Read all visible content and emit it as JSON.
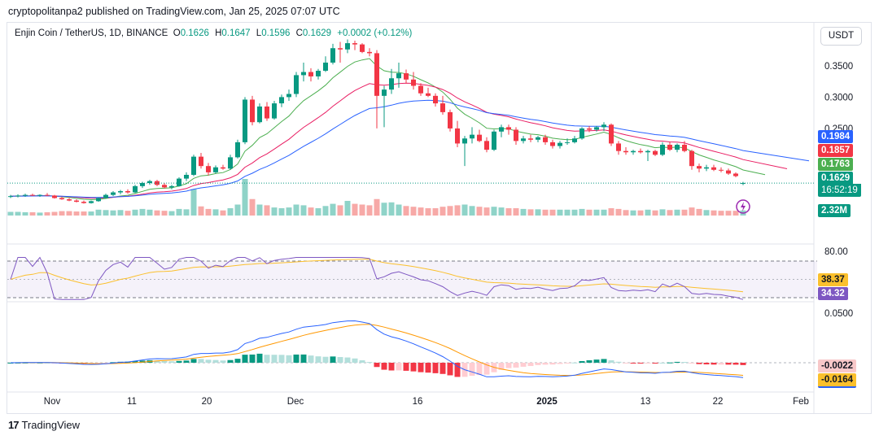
{
  "header": {
    "published": "cryptopolitanpa2 published on TradingView.com, Jan 25, 2025 07:07 UTC"
  },
  "symbol": {
    "name": "Enjin Coin / TetherUS, 1D, BINANCE",
    "o_label": "O",
    "o": "0.1626",
    "h_label": "H",
    "h": "0.1647",
    "l_label": "L",
    "l": "0.1596",
    "c_label": "C",
    "c": "0.1629",
    "change": "+0.0002 (+0.12%)"
  },
  "currency_button": "USDT",
  "footer": {
    "brand": "TradingView",
    "logo": "17"
  },
  "colors": {
    "up": "#089981",
    "down": "#f23645",
    "vol_up": "#8fd3c8",
    "vol_down": "#f7a9a7",
    "ma_fast": "#4caf50",
    "ma_mid": "#e91e63",
    "ma_slow": "#2962ff",
    "rsi": "#7e57c2",
    "rsi_ma": "#fbc02d",
    "macd": "#2962ff",
    "signal": "#ff9800"
  },
  "chart_data": {
    "type": "candlestick",
    "x_labels": [
      "Nov",
      "11",
      "20",
      "Dec",
      "16",
      "2025",
      "13",
      "22",
      "Feb"
    ],
    "price_axis": [
      "0.3500",
      "0.3000",
      "0.2500"
    ],
    "ylim": [
      0.115,
      0.39
    ],
    "price_tags": {
      "ma_slow": "0.1984",
      "ma_mid": "0.1857",
      "ma_fast": "0.1763",
      "last": "0.1629",
      "countdown": "16:52:19",
      "volume": "2.32M"
    },
    "candles": [
      [
        0.141,
        0.144,
        0.139,
        0.142
      ],
      [
        0.142,
        0.145,
        0.14,
        0.143
      ],
      [
        0.143,
        0.146,
        0.141,
        0.144
      ],
      [
        0.144,
        0.146,
        0.142,
        0.143
      ],
      [
        0.143,
        0.145,
        0.141,
        0.144
      ],
      [
        0.144,
        0.147,
        0.142,
        0.143
      ],
      [
        0.143,
        0.144,
        0.138,
        0.139
      ],
      [
        0.139,
        0.141,
        0.136,
        0.137
      ],
      [
        0.137,
        0.139,
        0.134,
        0.135
      ],
      [
        0.135,
        0.137,
        0.132,
        0.133
      ],
      [
        0.133,
        0.135,
        0.13,
        0.131
      ],
      [
        0.131,
        0.135,
        0.13,
        0.134
      ],
      [
        0.134,
        0.14,
        0.133,
        0.139
      ],
      [
        0.139,
        0.146,
        0.138,
        0.144
      ],
      [
        0.144,
        0.15,
        0.142,
        0.148
      ],
      [
        0.148,
        0.152,
        0.145,
        0.15
      ],
      [
        0.15,
        0.153,
        0.146,
        0.148
      ],
      [
        0.148,
        0.16,
        0.147,
        0.158
      ],
      [
        0.158,
        0.165,
        0.155,
        0.163
      ],
      [
        0.163,
        0.168,
        0.16,
        0.166
      ],
      [
        0.166,
        0.168,
        0.158,
        0.16
      ],
      [
        0.16,
        0.163,
        0.154,
        0.156
      ],
      [
        0.156,
        0.16,
        0.153,
        0.158
      ],
      [
        0.158,
        0.172,
        0.157,
        0.17
      ],
      [
        0.17,
        0.18,
        0.166,
        0.176
      ],
      [
        0.176,
        0.208,
        0.174,
        0.205
      ],
      [
        0.205,
        0.211,
        0.186,
        0.19
      ],
      [
        0.19,
        0.195,
        0.175,
        0.18
      ],
      [
        0.18,
        0.191,
        0.178,
        0.188
      ],
      [
        0.188,
        0.192,
        0.184,
        0.186
      ],
      [
        0.186,
        0.208,
        0.184,
        0.204
      ],
      [
        0.204,
        0.232,
        0.202,
        0.228
      ],
      [
        0.228,
        0.3,
        0.225,
        0.296
      ],
      [
        0.296,
        0.302,
        0.255,
        0.26
      ],
      [
        0.26,
        0.29,
        0.258,
        0.285
      ],
      [
        0.285,
        0.292,
        0.262,
        0.266
      ],
      [
        0.266,
        0.294,
        0.264,
        0.29
      ],
      [
        0.29,
        0.304,
        0.284,
        0.3
      ],
      [
        0.3,
        0.312,
        0.294,
        0.305
      ],
      [
        0.305,
        0.34,
        0.3,
        0.335
      ],
      [
        0.335,
        0.355,
        0.325,
        0.34
      ],
      [
        0.34,
        0.346,
        0.325,
        0.333
      ],
      [
        0.333,
        0.345,
        0.328,
        0.342
      ],
      [
        0.342,
        0.365,
        0.34,
        0.355
      ],
      [
        0.355,
        0.385,
        0.352,
        0.378
      ],
      [
        0.378,
        0.388,
        0.355,
        0.376
      ],
      [
        0.376,
        0.392,
        0.37,
        0.386
      ],
      [
        0.386,
        0.39,
        0.375,
        0.384
      ],
      [
        0.384,
        0.386,
        0.37,
        0.372
      ],
      [
        0.372,
        0.378,
        0.365,
        0.37
      ],
      [
        0.37,
        0.375,
        0.25,
        0.302
      ],
      [
        0.302,
        0.318,
        0.252,
        0.312
      ],
      [
        0.312,
        0.345,
        0.305,
        0.33
      ],
      [
        0.33,
        0.355,
        0.315,
        0.338
      ],
      [
        0.338,
        0.344,
        0.322,
        0.328
      ],
      [
        0.328,
        0.34,
        0.312,
        0.318
      ],
      [
        0.318,
        0.322,
        0.302,
        0.306
      ],
      [
        0.306,
        0.315,
        0.3,
        0.302
      ],
      [
        0.302,
        0.306,
        0.285,
        0.29
      ],
      [
        0.29,
        0.302,
        0.272,
        0.276
      ],
      [
        0.276,
        0.28,
        0.245,
        0.25
      ],
      [
        0.25,
        0.262,
        0.22,
        0.226
      ],
      [
        0.226,
        0.238,
        0.19,
        0.234
      ],
      [
        0.234,
        0.252,
        0.226,
        0.24
      ],
      [
        0.24,
        0.248,
        0.228,
        0.23
      ],
      [
        0.23,
        0.236,
        0.212,
        0.216
      ],
      [
        0.216,
        0.248,
        0.214,
        0.245
      ],
      [
        0.245,
        0.256,
        0.236,
        0.252
      ],
      [
        0.252,
        0.256,
        0.24,
        0.248
      ],
      [
        0.248,
        0.252,
        0.224,
        0.23
      ],
      [
        0.23,
        0.238,
        0.226,
        0.234
      ],
      [
        0.234,
        0.24,
        0.228,
        0.232
      ],
      [
        0.232,
        0.238,
        0.228,
        0.236
      ],
      [
        0.236,
        0.24,
        0.224,
        0.228
      ],
      [
        0.228,
        0.232,
        0.218,
        0.222
      ],
      [
        0.222,
        0.23,
        0.218,
        0.227
      ],
      [
        0.227,
        0.234,
        0.224,
        0.228
      ],
      [
        0.228,
        0.238,
        0.226,
        0.234
      ],
      [
        0.234,
        0.252,
        0.232,
        0.25
      ],
      [
        0.25,
        0.254,
        0.244,
        0.248
      ],
      [
        0.248,
        0.254,
        0.245,
        0.252
      ],
      [
        0.252,
        0.26,
        0.246,
        0.256
      ],
      [
        0.256,
        0.258,
        0.222,
        0.226
      ],
      [
        0.226,
        0.23,
        0.208,
        0.214
      ],
      [
        0.214,
        0.22,
        0.208,
        0.212
      ],
      [
        0.212,
        0.216,
        0.208,
        0.214
      ],
      [
        0.214,
        0.218,
        0.21,
        0.212
      ],
      [
        0.212,
        0.216,
        0.198,
        0.214
      ],
      [
        0.214,
        0.216,
        0.206,
        0.208
      ],
      [
        0.208,
        0.228,
        0.206,
        0.224
      ],
      [
        0.224,
        0.228,
        0.214,
        0.216
      ],
      [
        0.216,
        0.226,
        0.212,
        0.224
      ],
      [
        0.224,
        0.23,
        0.212,
        0.214
      ],
      [
        0.214,
        0.216,
        0.184,
        0.19
      ],
      [
        0.19,
        0.194,
        0.18,
        0.186
      ],
      [
        0.186,
        0.192,
        0.182,
        0.188
      ],
      [
        0.188,
        0.192,
        0.182,
        0.184
      ],
      [
        0.184,
        0.188,
        0.18,
        0.183
      ],
      [
        0.183,
        0.186,
        0.176,
        0.178
      ],
      [
        0.178,
        0.18,
        0.172,
        0.174
      ],
      [
        0.1626,
        0.1647,
        0.1596,
        0.1629
      ]
    ],
    "volume": [
      0.1,
      0.1,
      0.09,
      0.09,
      0.08,
      0.09,
      0.1,
      0.12,
      0.12,
      0.11,
      0.11,
      0.11,
      0.16,
      0.15,
      0.14,
      0.15,
      0.13,
      0.16,
      0.18,
      0.16,
      0.14,
      0.13,
      0.12,
      0.18,
      0.17,
      0.72,
      0.25,
      0.18,
      0.17,
      0.14,
      0.2,
      0.3,
      1.0,
      0.45,
      0.3,
      0.28,
      0.22,
      0.2,
      0.22,
      0.3,
      0.28,
      0.22,
      0.2,
      0.26,
      0.32,
      0.28,
      0.4,
      0.32,
      0.3,
      0.28,
      0.45,
      0.35,
      0.36,
      0.3,
      0.26,
      0.24,
      0.22,
      0.2,
      0.2,
      0.24,
      0.26,
      0.28,
      0.3,
      0.26,
      0.24,
      0.22,
      0.24,
      0.22,
      0.2,
      0.2,
      0.18,
      0.17,
      0.17,
      0.16,
      0.16,
      0.16,
      0.16,
      0.16,
      0.18,
      0.16,
      0.16,
      0.16,
      0.2,
      0.18,
      0.15,
      0.14,
      0.14,
      0.16,
      0.14,
      0.17,
      0.15,
      0.16,
      0.16,
      0.22,
      0.18,
      0.15,
      0.14,
      0.13,
      0.13,
      0.13,
      0.14
    ],
    "rsi_axis": "80.00",
    "rsi_value": "34.32",
    "rsi_ma_value": "38.37",
    "macd_axis": "0.0500",
    "macd_hist_value": "-0.0022",
    "macd_value": "-0.0164"
  }
}
